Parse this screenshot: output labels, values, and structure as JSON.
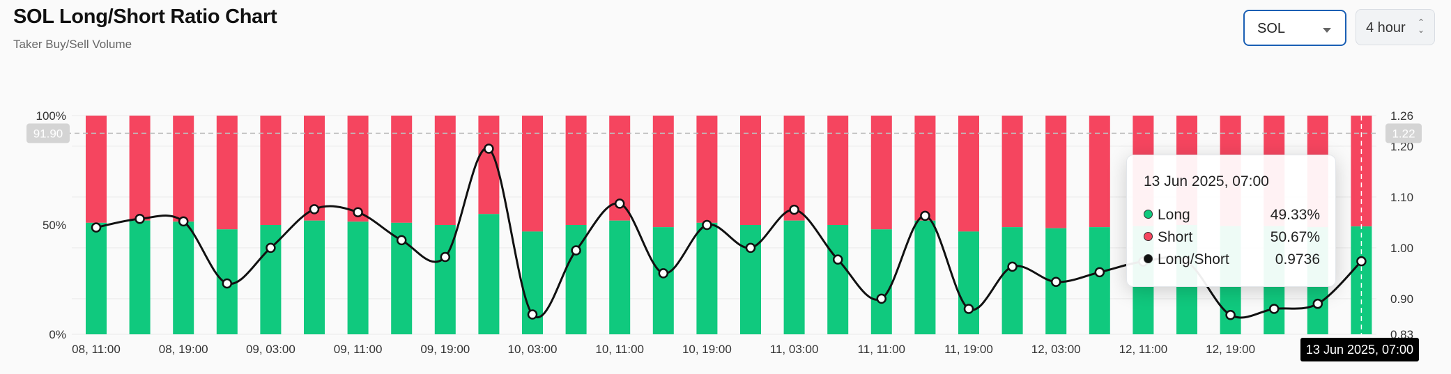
{
  "header": {
    "title": "SOL Long/Short Ratio Chart",
    "subtitle": "Taker Buy/Sell Volume"
  },
  "controls": {
    "symbol_value": "SOL",
    "interval_value": "4 hour"
  },
  "colors": {
    "long": "#10c97e",
    "short": "#f5455f",
    "ratio_line": "#111111"
  },
  "chart_data": {
    "type": "bar",
    "categories": [
      "08, 11:00",
      "08, 15:00",
      "08, 19:00",
      "08, 23:00",
      "09, 03:00",
      "09, 07:00",
      "09, 11:00",
      "09, 15:00",
      "09, 19:00",
      "09, 23:00",
      "10, 03:00",
      "10, 07:00",
      "10, 11:00",
      "10, 15:00",
      "10, 19:00",
      "10, 23:00",
      "11, 03:00",
      "11, 07:00",
      "11, 11:00",
      "11, 15:00",
      "11, 19:00",
      "11, 23:00",
      "12, 03:00",
      "12, 07:00",
      "12, 11:00",
      "12, 15:00",
      "12, 19:00",
      "12, 23:00",
      "13, 03:00",
      "13 Jun 2025, 07:00"
    ],
    "x_tick_labels": [
      "08, 11:00",
      "08, 19:00",
      "09, 03:00",
      "09, 11:00",
      "09, 19:00",
      "10, 03:00",
      "10, 11:00",
      "10, 19:00",
      "11, 03:00",
      "11, 11:00",
      "11, 19:00",
      "12, 03:00",
      "12, 11:00",
      "12, 19:00",
      "13"
    ],
    "series": [
      {
        "name": "Long",
        "values": [
          51,
          52,
          51.5,
          48,
          50,
          52,
          51.5,
          51,
          50,
          55,
          47,
          50,
          52,
          49,
          51,
          50,
          52,
          50,
          48,
          52,
          47,
          49,
          48.5,
          49,
          49.5,
          50,
          49.5,
          49.5,
          49,
          49.33
        ]
      },
      {
        "name": "Short",
        "values": [
          49,
          48,
          48.5,
          52,
          50,
          48,
          48.5,
          49,
          50,
          45,
          53,
          50,
          48,
          51,
          49,
          50,
          48,
          50,
          52,
          48,
          53,
          51,
          51.5,
          51,
          50.5,
          50,
          50.5,
          50.5,
          51,
          50.67
        ]
      },
      {
        "name": "Long/Short",
        "values": [
          1.04,
          1.057,
          1.052,
          0.93,
          1.0,
          1.076,
          1.07,
          1.015,
          0.982,
          1.195,
          0.869,
          0.995,
          1.087,
          0.95,
          1.045,
          1.0,
          1.075,
          0.977,
          0.9,
          1.063,
          0.88,
          0.963,
          0.933,
          0.952,
          0.973,
          0.973,
          0.868,
          0.88,
          0.89,
          0.9736
        ]
      }
    ],
    "y_left_ticks": [
      "100%",
      "50%",
      "0%"
    ],
    "y_left_ylim": [
      0,
      100
    ],
    "y_right_ticks": [
      "1.26",
      "1.20",
      "1.10",
      "1.00",
      "0.90",
      "0.83"
    ],
    "y_right_ylim": [
      0.83,
      1.26
    ],
    "crosshair": {
      "left_label": "91.90",
      "left_value": 91.9,
      "right_label": "1.22",
      "x_label": "13 Jun 2025, 07:00"
    },
    "grid": true
  },
  "tooltip": {
    "date": "13 Jun 2025, 07:00",
    "rows": [
      {
        "label": "Long",
        "value": "49.33%",
        "color": "#10c97e"
      },
      {
        "label": "Short",
        "value": "50.67%",
        "color": "#f5455f"
      },
      {
        "label": "Long/Short",
        "value": "0.9736",
        "color": "#111111"
      }
    ]
  }
}
